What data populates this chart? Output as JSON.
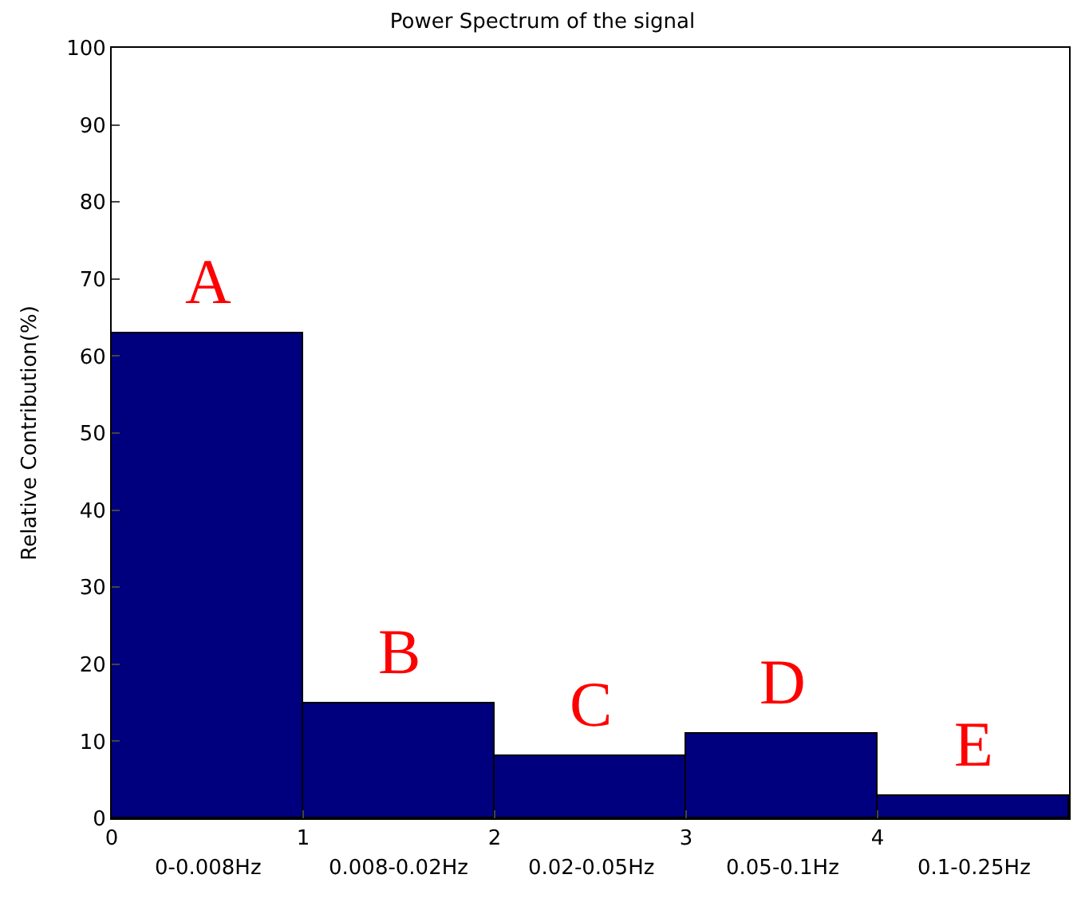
{
  "chart_data": {
    "type": "histogram",
    "title": "Power Spectrum of the signal",
    "ylabel": "Relative Contribution(%)",
    "bins": [
      0,
      1,
      2,
      3,
      4,
      5
    ],
    "values": [
      63,
      15,
      8,
      11,
      3
    ],
    "color": "#00007f",
    "xlim": [
      0,
      5
    ],
    "xticks": [
      0,
      1,
      2,
      3,
      4
    ],
    "ylim": [
      0,
      100
    ],
    "yticks": [
      0,
      10,
      20,
      30,
      40,
      50,
      60,
      70,
      80,
      90,
      100
    ],
    "annotations": [
      "A",
      "B",
      "C",
      "D",
      "E",
      "0-0.008Hz",
      "0.008-0.02Hz",
      "0.02-0.05Hz",
      "0.05-0.1Hz",
      "0.1-0.25Hz"
    ]
  }
}
